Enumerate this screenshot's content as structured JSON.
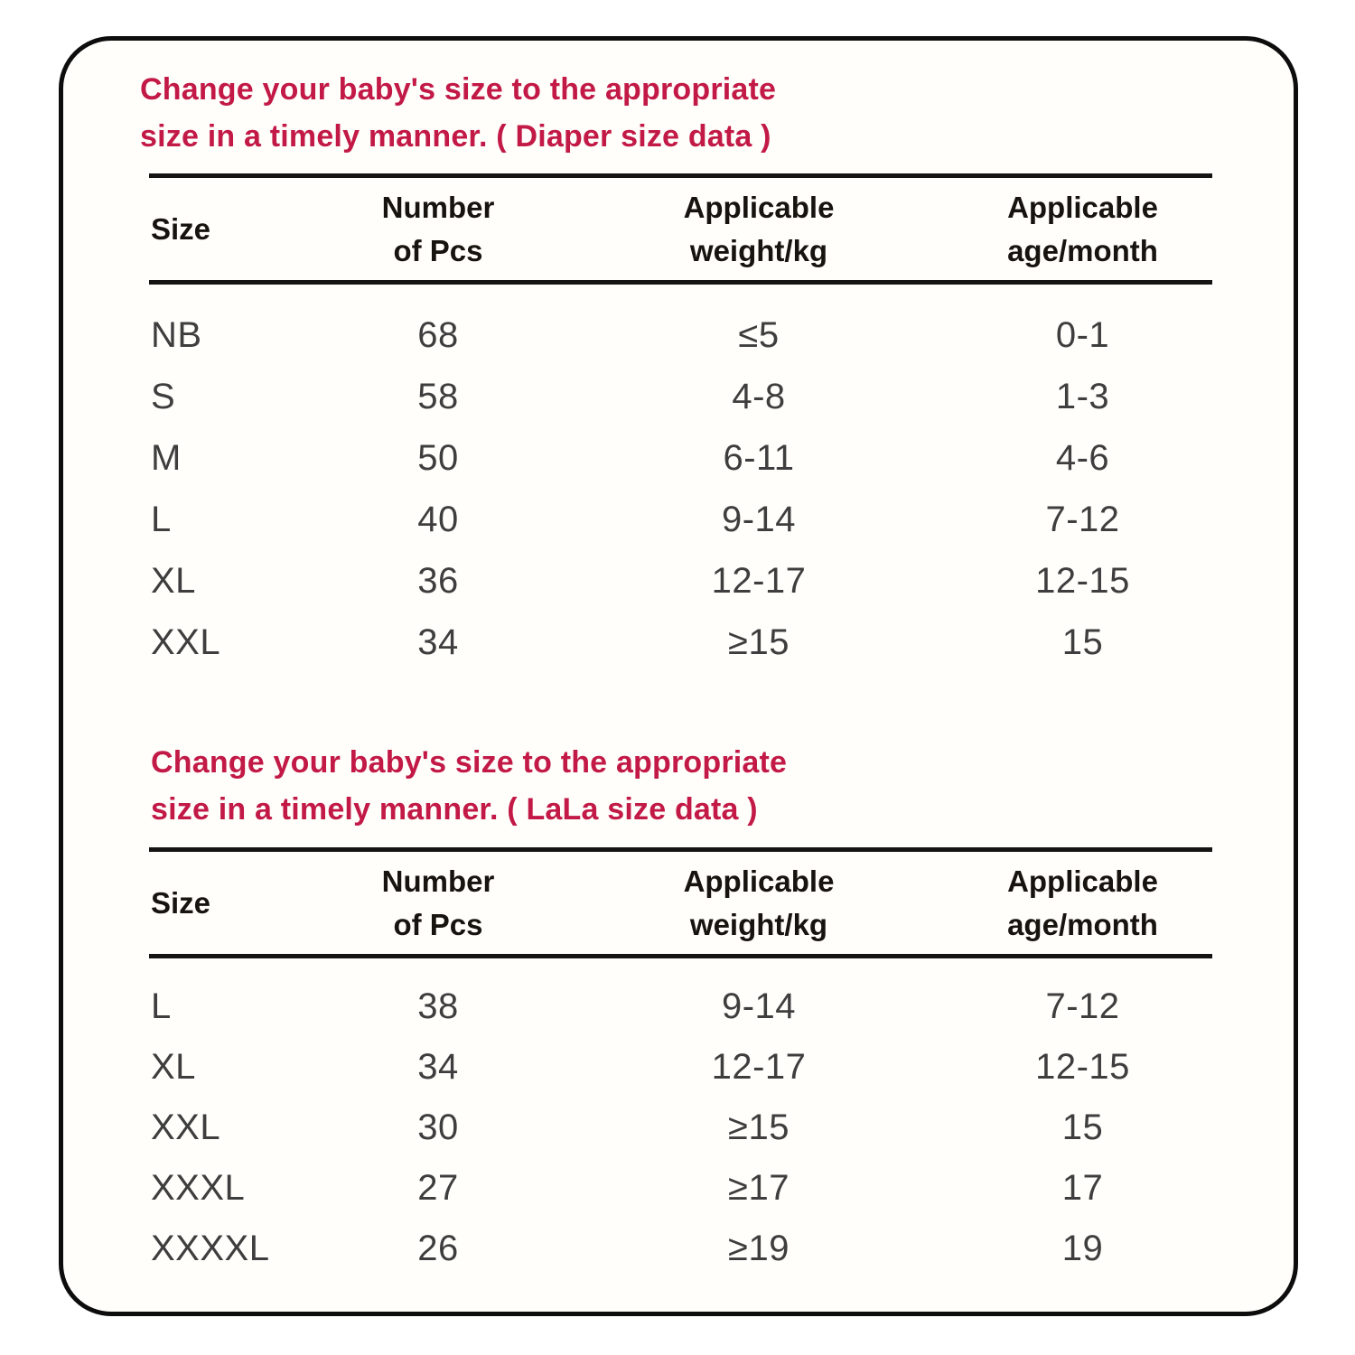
{
  "colors": {
    "page_background": "#ffffff",
    "card_background": "#fffefb",
    "card_border": "#0d0d0d",
    "title_text": "#c21946",
    "header_text": "#17130e",
    "body_text": "#3e3e3e",
    "rule": "#161412"
  },
  "tables": [
    {
      "title_line1": "Change your baby's size to the appropriate",
      "title_line2": "size in a timely manner. ( Diaper size data )",
      "headers": {
        "size": "Size",
        "pcs_line1": "Number",
        "pcs_line2": "of Pcs",
        "weight_line1": "Applicable",
        "weight_line2": "weight/kg",
        "age_line1": "Applicable",
        "age_line2": "age/month"
      },
      "rows": [
        {
          "size": "NB",
          "pcs": "68",
          "weight": "≤5",
          "age": "0-1"
        },
        {
          "size": "S",
          "pcs": "58",
          "weight": "4-8",
          "age": "1-3"
        },
        {
          "size": "M",
          "pcs": "50",
          "weight": "6-11",
          "age": "4-6"
        },
        {
          "size": "L",
          "pcs": "40",
          "weight": "9-14",
          "age": "7-12"
        },
        {
          "size": "XL",
          "pcs": "36",
          "weight": "12-17",
          "age": "12-15"
        },
        {
          "size": "XXL",
          "pcs": "34",
          "weight": "≥15",
          "age": "15"
        }
      ]
    },
    {
      "title_line1": "Change your baby's size to the appropriate",
      "title_line2": "size in a timely manner. ( LaLa size data )",
      "headers": {
        "size": "Size",
        "pcs_line1": "Number",
        "pcs_line2": "of Pcs",
        "weight_line1": "Applicable",
        "weight_line2": "weight/kg",
        "age_line1": "Applicable",
        "age_line2": "age/month"
      },
      "rows": [
        {
          "size": "L",
          "pcs": "38",
          "weight": "9-14",
          "age": "7-12"
        },
        {
          "size": "XL",
          "pcs": "34",
          "weight": "12-17",
          "age": "12-15"
        },
        {
          "size": "XXL",
          "pcs": "30",
          "weight": "≥15",
          "age": "15"
        },
        {
          "size": "XXXL",
          "pcs": "27",
          "weight": "≥17",
          "age": "17"
        },
        {
          "size": "XXXXL",
          "pcs": "26",
          "weight": "≥19",
          "age": "19"
        }
      ]
    }
  ]
}
